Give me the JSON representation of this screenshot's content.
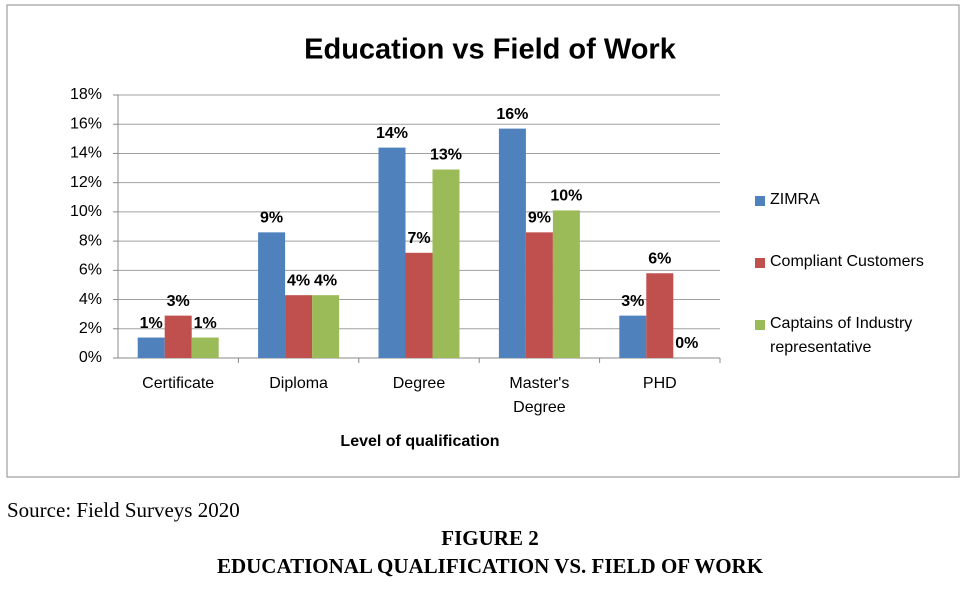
{
  "chart_data": {
    "type": "bar",
    "title": "Education vs Field of Work",
    "x_label": "Level of qualification",
    "categories": [
      "Certificate",
      "Diploma",
      "Degree",
      "Master's Degree",
      "PHD"
    ],
    "series": [
      {
        "name": "ZIMRA",
        "color": "#4f81bd",
        "values": [
          1.4,
          8.6,
          14.4,
          15.7,
          2.9
        ],
        "value_labels": [
          "1%",
          "9%",
          "14%",
          "16%",
          "3%"
        ]
      },
      {
        "name": "Compliant Customers",
        "color": "#c0504d",
        "values": [
          2.9,
          4.3,
          7.2,
          8.6,
          5.8
        ],
        "value_labels": [
          "3%",
          "4%",
          "7%",
          "9%",
          "6%"
        ]
      },
      {
        "name": "Captains of Industry representative",
        "color": "#9bbb59",
        "values": [
          1.4,
          4.3,
          12.9,
          10.1,
          0
        ],
        "value_labels": [
          "1%",
          "4%",
          "13%",
          "10%",
          "0%"
        ]
      }
    ],
    "ylim": [
      0,
      18
    ],
    "yticks": [
      {
        "value": 0,
        "label": "0%"
      },
      {
        "value": 2,
        "label": "2%"
      },
      {
        "value": 4,
        "label": "4%"
      },
      {
        "value": 6,
        "label": "6%"
      },
      {
        "value": 8,
        "label": "8%"
      },
      {
        "value": 10,
        "label": "10%"
      },
      {
        "value": 12,
        "label": "12%"
      },
      {
        "value": 14,
        "label": "14%"
      },
      {
        "value": 16,
        "label": "16%"
      },
      {
        "value": 18,
        "label": "18%"
      }
    ],
    "grid": true,
    "legend": "right"
  },
  "source": "Source: Field Surveys 2020",
  "figure_label": "FIGURE 2",
  "caption": "EDUCATIONAL QUALIFICATION VS. FIELD OF WORK"
}
